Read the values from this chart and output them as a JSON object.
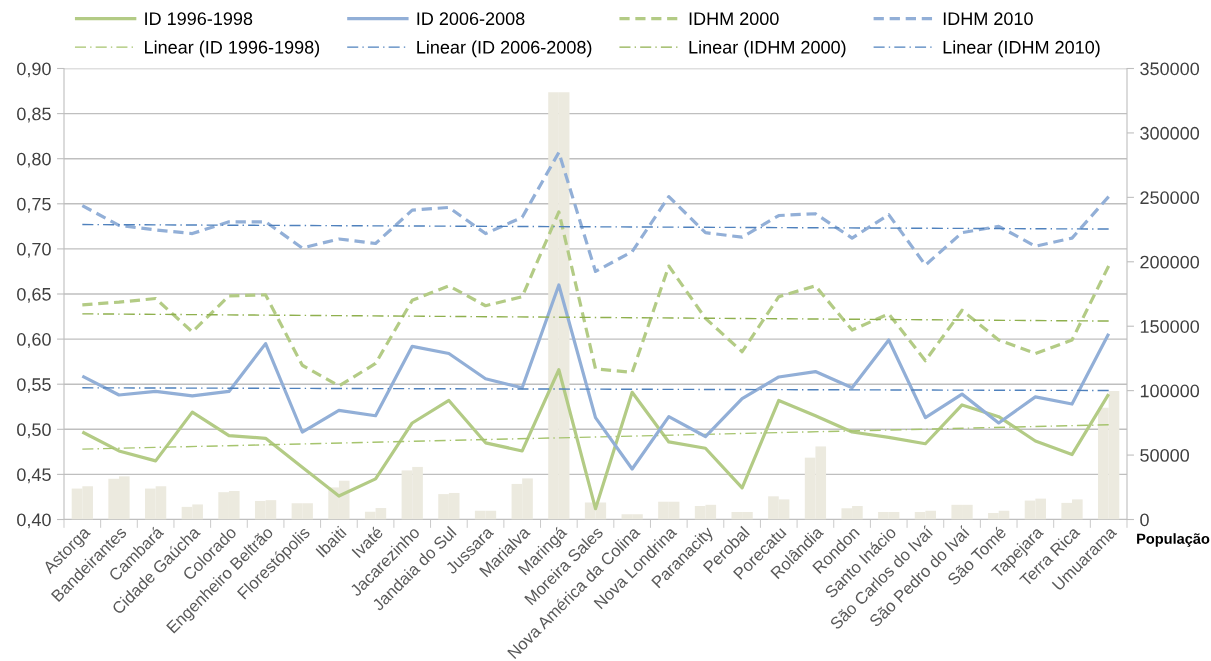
{
  "chart_data": {
    "type": "line",
    "categories": [
      "Astorga",
      "Bandeirantes",
      "Cambará",
      "Cidade Gaúcha",
      "Colorado",
      "Engenheiro Beltrão",
      "Florestópolis",
      "Ibaiti",
      "Ivaté",
      "Jacarezinho",
      "Jandaia do Sul",
      "Jussara",
      "Marialva",
      "Maringá",
      "Moreira Sales",
      "Nova América da Colina",
      "Nova Londrina",
      "Paranacity",
      "Perobal",
      "Porecatu",
      "Rolândia",
      "Rondon",
      "Santo Inácio",
      "São Carlos do Ivaí",
      "São Pedro do Ivaí",
      "São Tomé",
      "Tapejara",
      "Terra Rica",
      "Umuarama"
    ],
    "series": [
      {
        "type": "bar",
        "axis": "y2",
        "color": "#eceadf",
        "values": [
          24000,
          31600,
          24000,
          9800,
          21200,
          14400,
          12600,
          24900,
          6100,
          38100,
          19700,
          6800,
          27600,
          331600,
          13200,
          4100,
          13800,
          10500,
          5900,
          18000,
          48000,
          8700,
          5900,
          5900,
          11400,
          5000,
          14700,
          12900,
          86700
        ]
      },
      {
        "type": "bar",
        "axis": "y2",
        "color": "#eceadf",
        "values": [
          25800,
          33500,
          25800,
          11700,
          22100,
          15000,
          12600,
          30100,
          8900,
          40800,
          20600,
          6800,
          31900,
          331600,
          13200,
          4100,
          13800,
          11400,
          5900,
          15600,
          56700,
          10500,
          5900,
          6800,
          11400,
          6800,
          16200,
          15600,
          99700
        ]
      },
      {
        "name": "ID 1996-1998",
        "color": "#b3cb85",
        "line_style": "solid",
        "values": [
          0.497,
          0.476,
          0.465,
          0.519,
          0.493,
          0.49,
          0.458,
          0.426,
          0.445,
          0.507,
          0.532,
          0.485,
          0.476,
          0.566,
          0.412,
          0.541,
          0.486,
          0.479,
          0.435,
          0.532,
          0.515,
          0.497,
          0.491,
          0.484,
          0.527,
          0.514,
          0.487,
          0.472,
          0.539
        ]
      },
      {
        "name": "Linear (ID 1996-1998)",
        "color": "#a6c46e",
        "line_style": "dashdot",
        "x": [
          "Astorga",
          "Umuarama"
        ],
        "values": [
          0.478,
          0.505
        ]
      },
      {
        "name": "ID 2006-2008",
        "color": "#92afd7",
        "line_style": "solid",
        "values": [
          0.559,
          0.538,
          0.542,
          0.537,
          0.542,
          0.595,
          0.497,
          0.521,
          0.515,
          0.592,
          0.584,
          0.556,
          0.546,
          0.66,
          0.513,
          0.456,
          0.514,
          0.492,
          0.534,
          0.558,
          0.564,
          0.546,
          0.599,
          0.513,
          0.539,
          0.507,
          0.536,
          0.528,
          0.606
        ]
      },
      {
        "name": "Linear (ID 2006-2008)",
        "color": "#4f81bd",
        "line_style": "dashdot",
        "x": [
          "Astorga",
          "Umuarama"
        ],
        "values": [
          0.546,
          0.543
        ]
      },
      {
        "name": "IDHM 2000",
        "color": "#b3cb85",
        "line_style": "dashed",
        "values": [
          0.638,
          0.641,
          0.645,
          0.608,
          0.648,
          0.649,
          0.571,
          0.548,
          0.573,
          0.643,
          0.659,
          0.637,
          0.647,
          0.741,
          0.567,
          0.563,
          0.681,
          0.623,
          0.586,
          0.647,
          0.659,
          0.61,
          0.628,
          0.576,
          0.632,
          0.599,
          0.584,
          0.599,
          0.681
        ]
      },
      {
        "name": "Linear (IDHM 2000)",
        "color": "#8fb04e",
        "line_style": "dashdot",
        "x": [
          "Astorga",
          "Umuarama"
        ],
        "values": [
          0.628,
          0.62
        ]
      },
      {
        "name": "IDHM 2010",
        "color": "#92afd7",
        "line_style": "dashed",
        "values": [
          0.748,
          0.726,
          0.721,
          0.717,
          0.73,
          0.73,
          0.701,
          0.711,
          0.706,
          0.743,
          0.746,
          0.717,
          0.735,
          0.807,
          0.675,
          0.697,
          0.758,
          0.718,
          0.713,
          0.737,
          0.739,
          0.712,
          0.738,
          0.682,
          0.718,
          0.725,
          0.703,
          0.712,
          0.758
        ]
      },
      {
        "name": "Linear (IDHM 2010)",
        "color": "#4f81bd",
        "line_style": "dashdot",
        "x": [
          "Astorga",
          "Umuarama"
        ],
        "values": [
          0.727,
          0.722
        ]
      }
    ],
    "ylim": [
      0.4,
      0.9
    ],
    "yticks": [
      {
        "value": 0.4,
        "label": "0,40"
      },
      {
        "value": 0.45,
        "label": "0,45"
      },
      {
        "value": 0.5,
        "label": "0,50"
      },
      {
        "value": 0.55,
        "label": "0,55"
      },
      {
        "value": 0.6,
        "label": "0,60"
      },
      {
        "value": 0.65,
        "label": "0,65"
      },
      {
        "value": 0.7,
        "label": "0,70"
      },
      {
        "value": 0.75,
        "label": "0,75"
      },
      {
        "value": 0.8,
        "label": "0,80"
      },
      {
        "value": 0.85,
        "label": "0,85"
      },
      {
        "value": 0.9,
        "label": "0,90"
      }
    ],
    "y2lim": [
      0,
      350000
    ],
    "y2ticks": [
      0,
      50000,
      100000,
      150000,
      200000,
      250000,
      300000,
      350000
    ],
    "y2label": "População",
    "grid": "y",
    "legend": "top"
  }
}
